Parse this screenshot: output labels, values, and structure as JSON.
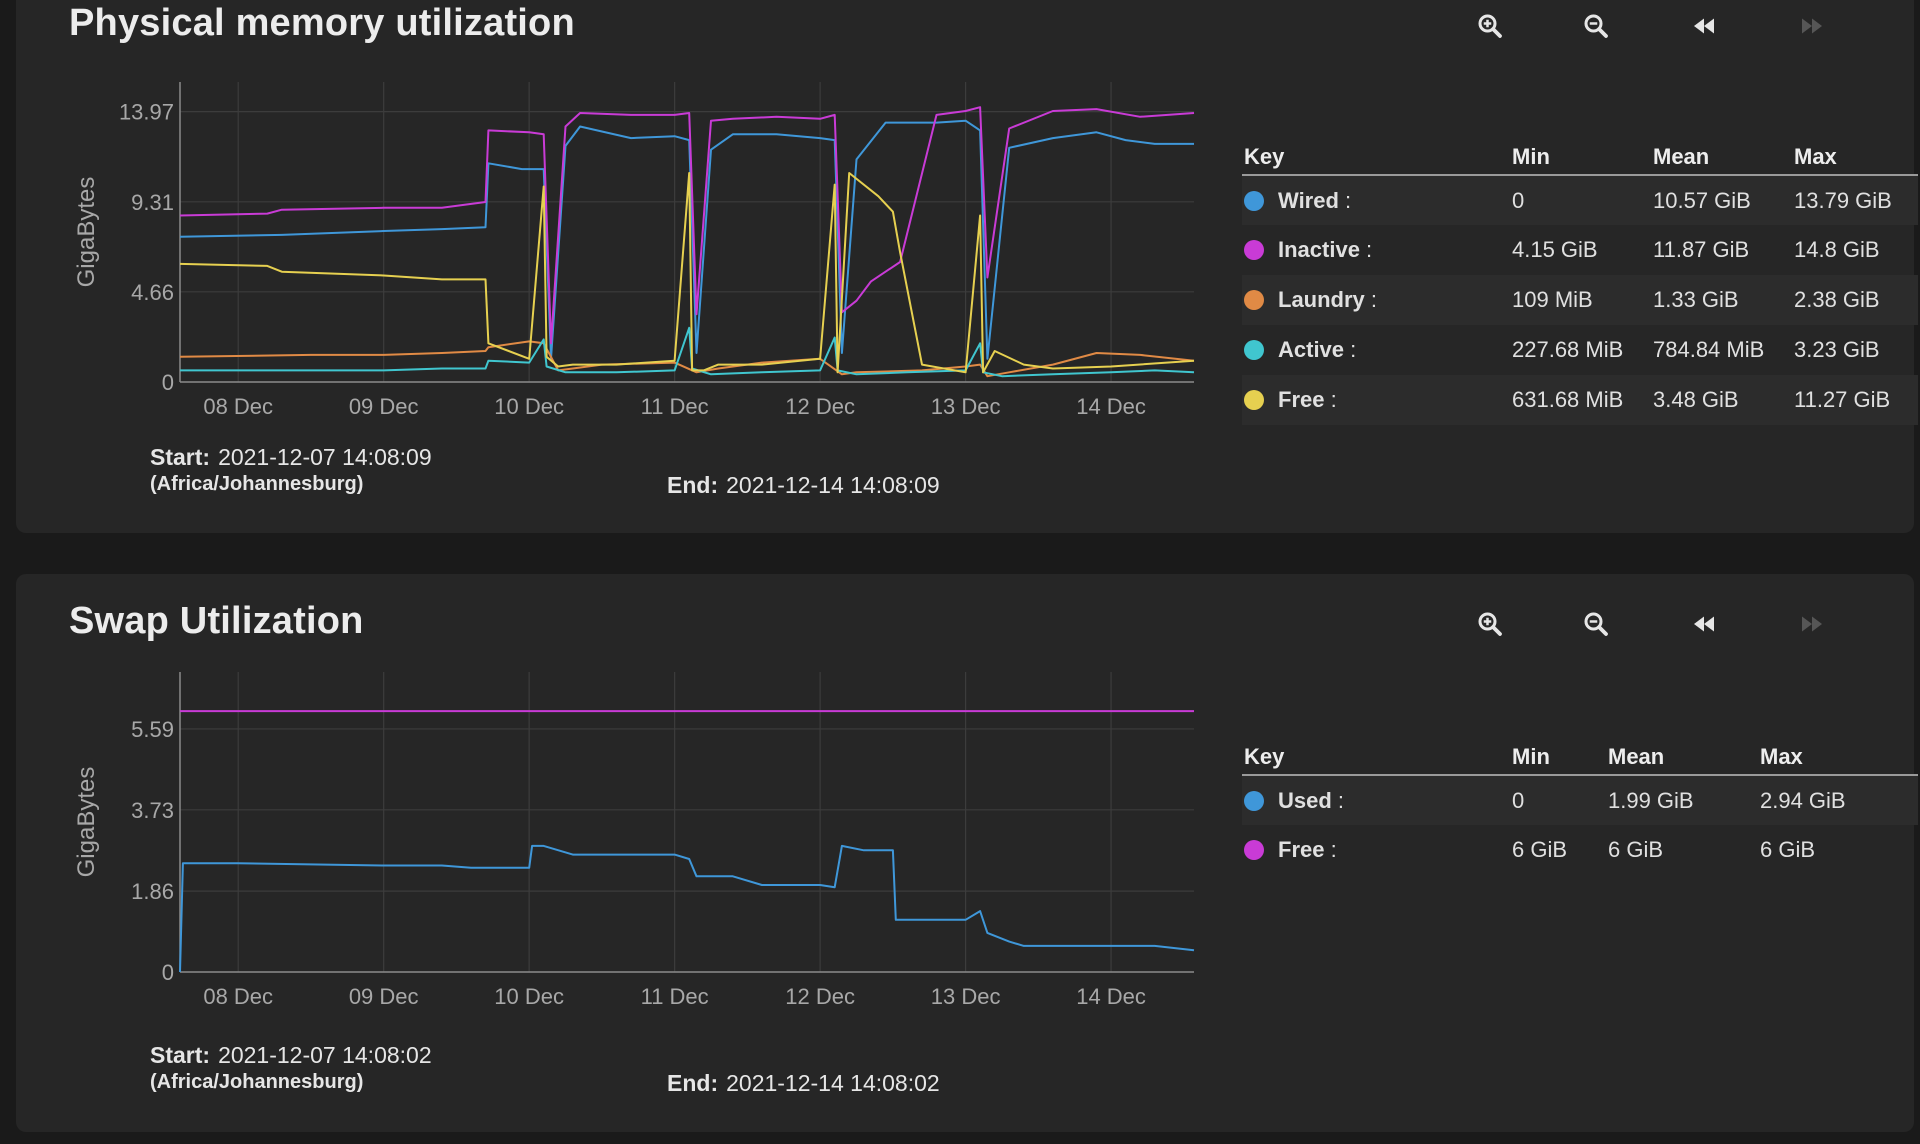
{
  "memory": {
    "title": "Physical memory utilization",
    "start_label": "Start:",
    "start_value": "2021-12-07 14:08:09",
    "timezone": "(Africa/Johannesburg)",
    "end_label": "End:",
    "end_value": "2021-12-14 14:08:09",
    "legend_headers": [
      "Key",
      "Min",
      "Mean",
      "Max"
    ],
    "legend": [
      {
        "name": "Wired",
        "min": "0",
        "mean": "10.57 GiB",
        "max": "13.79 GiB"
      },
      {
        "name": "Inactive",
        "min": "4.15 GiB",
        "mean": "11.87 GiB",
        "max": "14.8 GiB"
      },
      {
        "name": "Laundry",
        "min": "109 MiB",
        "mean": "1.33 GiB",
        "max": "2.38 GiB"
      },
      {
        "name": "Active",
        "min": "227.68 MiB",
        "mean": "784.84 MiB",
        "max": "3.23 GiB"
      },
      {
        "name": "Free",
        "min": "631.68 MiB",
        "mean": "3.48 GiB",
        "max": "11.27 GiB"
      }
    ]
  },
  "swap": {
    "title": "Swap Utilization",
    "start_label": "Start:",
    "start_value": "2021-12-07 14:08:02",
    "timezone": "(Africa/Johannesburg)",
    "end_label": "End:",
    "end_value": "2021-12-14 14:08:02",
    "legend_headers": [
      "Key",
      "Min",
      "Mean",
      "Max"
    ],
    "legend": [
      {
        "name": "Used",
        "min": "0",
        "mean": "1.99 GiB",
        "max": "2.94 GiB"
      },
      {
        "name": "Free",
        "min": "6 GiB",
        "mean": "6 GiB",
        "max": "6 GiB"
      }
    ]
  },
  "colors": {
    "Wired": "#3f97d9",
    "Inactive": "#c93bd6",
    "Laundry": "#e08a45",
    "Active": "#40c6cf",
    "Free": "#e6d050",
    "SwapUsed": "#3f97d9",
    "SwapFree": "#c93bd6",
    "grid": "#3c3c3c",
    "tick": "#a8a8a8"
  },
  "icons": [
    "zoom-in-icon",
    "zoom-out-icon",
    "rewind-icon",
    "fast-forward-icon"
  ],
  "chart_data": [
    {
      "type": "line",
      "title": "Physical memory utilization",
      "ylabel": "GigaBytes",
      "xlabel": "",
      "xlim": [
        -0.4,
        6.57
      ],
      "ylim": [
        0,
        15.5
      ],
      "yticks": [
        0,
        4.66,
        9.31,
        13.97
      ],
      "ytick_labels": [
        "0",
        "4.66",
        "9.31",
        "13.97"
      ],
      "xticks": [
        0,
        1,
        2,
        3,
        4,
        5,
        6
      ],
      "xtick_labels": [
        "08 Dec",
        "09 Dec",
        "10 Dec",
        "11 Dec",
        "12 Dec",
        "13 Dec",
        "14 Dec"
      ],
      "series": [
        {
          "name": "Wired",
          "x": [
            -0.4,
            0.3,
            1.0,
            1.4,
            1.7,
            1.72,
            1.95,
            2.1,
            2.15,
            2.25,
            2.35,
            2.7,
            3.0,
            3.1,
            3.15,
            3.25,
            3.4,
            3.7,
            4.0,
            4.1,
            4.15,
            4.25,
            4.45,
            4.8,
            5.0,
            5.1,
            5.15,
            5.3,
            5.6,
            5.9,
            6.1,
            6.3,
            6.57
          ],
          "y": [
            7.5,
            7.6,
            7.8,
            7.9,
            8.0,
            11.3,
            11.0,
            11.0,
            1.2,
            12.2,
            13.2,
            12.6,
            12.7,
            12.5,
            1.5,
            12.0,
            12.8,
            12.8,
            12.6,
            12.5,
            1.5,
            11.5,
            13.4,
            13.4,
            13.5,
            13.0,
            1.2,
            12.1,
            12.6,
            12.9,
            12.5,
            12.3,
            12.3
          ]
        },
        {
          "name": "Inactive",
          "x": [
            -0.4,
            0.2,
            0.3,
            1.0,
            1.4,
            1.7,
            1.72,
            2.0,
            2.1,
            2.15,
            2.25,
            2.35,
            2.7,
            3.0,
            3.1,
            3.15,
            3.25,
            3.4,
            3.7,
            4.0,
            4.1,
            4.15,
            4.25,
            4.35,
            4.55,
            4.8,
            5.0,
            5.1,
            5.15,
            5.3,
            5.6,
            5.9,
            6.2,
            6.57
          ],
          "y": [
            8.6,
            8.7,
            8.9,
            9.0,
            9.0,
            9.3,
            13.0,
            12.9,
            12.8,
            2.0,
            13.2,
            13.9,
            13.8,
            13.8,
            13.9,
            3.5,
            13.5,
            13.6,
            13.7,
            13.6,
            13.8,
            3.6,
            4.2,
            5.2,
            6.2,
            13.8,
            14.0,
            14.2,
            5.4,
            13.1,
            14.0,
            14.1,
            13.7,
            13.9
          ]
        },
        {
          "name": "Laundry",
          "x": [
            -0.4,
            0.5,
            1.0,
            1.4,
            1.7,
            1.72,
            2.0,
            2.1,
            2.2,
            2.3,
            2.5,
            3.0,
            3.15,
            3.3,
            3.6,
            4.0,
            4.15,
            4.25,
            4.7,
            5.0,
            5.1,
            5.15,
            5.3,
            5.6,
            5.9,
            6.2,
            6.57
          ],
          "y": [
            1.3,
            1.4,
            1.4,
            1.5,
            1.6,
            1.8,
            2.1,
            2.0,
            0.6,
            0.7,
            0.9,
            1.0,
            0.5,
            0.7,
            1.0,
            1.2,
            0.4,
            0.5,
            0.6,
            0.8,
            0.9,
            0.3,
            0.5,
            0.9,
            1.5,
            1.4,
            1.1
          ]
        },
        {
          "name": "Active",
          "x": [
            -0.4,
            0.5,
            1.0,
            1.4,
            1.7,
            1.72,
            2.0,
            2.1,
            2.12,
            2.25,
            2.6,
            3.0,
            3.1,
            3.12,
            3.25,
            3.6,
            4.0,
            4.1,
            4.12,
            4.25,
            4.6,
            5.0,
            5.1,
            5.12,
            5.25,
            5.6,
            6.0,
            6.3,
            6.57
          ],
          "y": [
            0.6,
            0.6,
            0.6,
            0.7,
            0.7,
            1.1,
            1.0,
            2.2,
            0.8,
            0.5,
            0.5,
            0.6,
            2.8,
            0.7,
            0.4,
            0.5,
            0.6,
            2.3,
            0.6,
            0.4,
            0.5,
            0.6,
            2.0,
            0.5,
            0.3,
            0.4,
            0.5,
            0.6,
            0.5
          ]
        },
        {
          "name": "Free",
          "x": [
            -0.4,
            0.2,
            0.3,
            1.0,
            1.4,
            1.7,
            1.72,
            2.0,
            2.1,
            2.12,
            2.2,
            2.3,
            2.6,
            3.0,
            3.1,
            3.12,
            3.2,
            3.3,
            3.6,
            4.0,
            4.1,
            4.12,
            4.2,
            4.4,
            4.5,
            4.55,
            4.7,
            5.0,
            5.1,
            5.12,
            5.2,
            5.4,
            5.6,
            6.0,
            6.57
          ],
          "y": [
            6.1,
            6.0,
            5.7,
            5.5,
            5.3,
            5.3,
            2.0,
            1.2,
            10.1,
            1.3,
            0.8,
            0.9,
            0.9,
            1.1,
            10.8,
            0.6,
            0.6,
            0.9,
            0.9,
            1.2,
            10.2,
            0.5,
            10.8,
            9.6,
            8.8,
            6.7,
            0.9,
            0.5,
            8.6,
            0.5,
            1.6,
            0.9,
            0.7,
            0.8,
            1.1
          ]
        }
      ]
    },
    {
      "type": "line",
      "title": "Swap Utilization",
      "ylabel": "GigaBytes",
      "xlabel": "",
      "xlim": [
        -0.4,
        6.57
      ],
      "ylim": [
        0,
        6.9
      ],
      "yticks": [
        0,
        1.86,
        3.73,
        5.59
      ],
      "ytick_labels": [
        "0",
        "1.86",
        "3.73",
        "5.59"
      ],
      "xticks": [
        0,
        1,
        2,
        3,
        4,
        5,
        6
      ],
      "xtick_labels": [
        "08 Dec",
        "09 Dec",
        "10 Dec",
        "11 Dec",
        "12 Dec",
        "13 Dec",
        "14 Dec"
      ],
      "series": [
        {
          "name": "Used",
          "x": [
            -0.4,
            -0.38,
            0.0,
            1.0,
            1.4,
            1.6,
            1.8,
            2.0,
            2.02,
            2.1,
            2.3,
            3.0,
            3.1,
            3.15,
            3.4,
            3.6,
            4.0,
            4.1,
            4.15,
            4.3,
            4.5,
            4.52,
            4.8,
            5.0,
            5.1,
            5.15,
            5.3,
            5.4,
            5.5,
            6.0,
            6.3,
            6.57
          ],
          "y": [
            0,
            2.5,
            2.5,
            2.45,
            2.45,
            2.4,
            2.4,
            2.4,
            2.9,
            2.9,
            2.7,
            2.7,
            2.6,
            2.2,
            2.2,
            2.0,
            2.0,
            1.95,
            2.9,
            2.8,
            2.8,
            1.2,
            1.2,
            1.2,
            1.4,
            0.9,
            0.7,
            0.6,
            0.6,
            0.6,
            0.6,
            0.5
          ]
        },
        {
          "name": "Free",
          "x": [
            -0.4,
            6.57
          ],
          "y": [
            6.0,
            6.0
          ]
        }
      ]
    }
  ]
}
